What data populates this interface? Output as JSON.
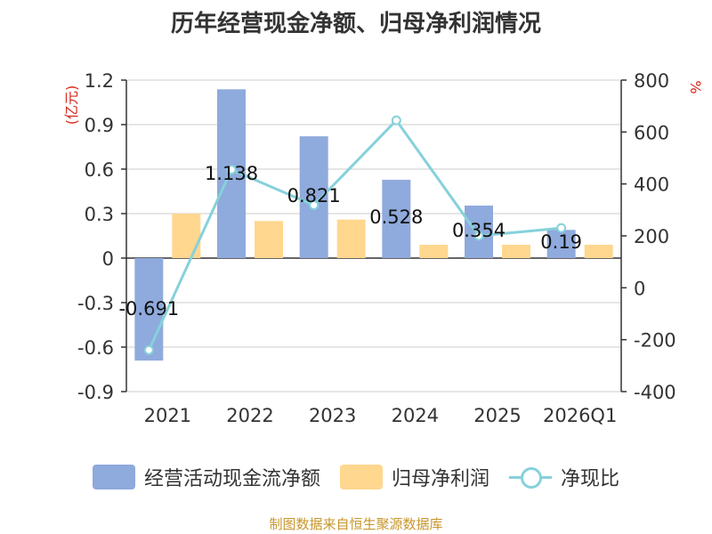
{
  "title": "历年经营现金净额、归母净利润情况",
  "source": "制图数据来自恒生聚源数据库",
  "colors": {
    "cash": "#8faadc",
    "profit": "#ffd78f",
    "ratio": "#86d1db",
    "axis": "#333333",
    "grid": "#cccccc",
    "unit": "#d7261b",
    "source": "#c8962c"
  },
  "chart_data": {
    "type": "bar",
    "categories": [
      "2021",
      "2022",
      "2023",
      "2024",
      "2025",
      "2026Q1"
    ],
    "left_axis_label": "(亿元)",
    "right_axis_label": "%",
    "left_ylim": [
      -0.9,
      1.2
    ],
    "left_ticks": [
      "1.2",
      "0.9",
      "0.6",
      "0.3",
      "0",
      "-0.3",
      "-0.6",
      "-0.9"
    ],
    "right_ylim": [
      -400,
      800
    ],
    "right_ticks": [
      "800",
      "600",
      "400",
      "200",
      "0",
      "-200",
      "-400"
    ],
    "grid": true,
    "legend_position": "bottom",
    "series": [
      {
        "name": "经营活动现金流净额",
        "kind": "bar",
        "axis": "left",
        "values": [
          -0.691,
          1.138,
          0.821,
          0.528,
          0.354,
          0.19
        ],
        "labels": [
          "-0.691",
          "1.138",
          "0.821",
          "0.528",
          "0.354",
          "0.19"
        ]
      },
      {
        "name": "归母净利润",
        "kind": "bar",
        "axis": "left",
        "values": [
          0.3,
          0.25,
          0.26,
          0.09,
          0.09,
          0.09
        ]
      },
      {
        "name": "净现比",
        "kind": "line",
        "axis": "right",
        "values": [
          -240,
          455,
          318,
          645,
          200,
          230
        ]
      }
    ]
  }
}
